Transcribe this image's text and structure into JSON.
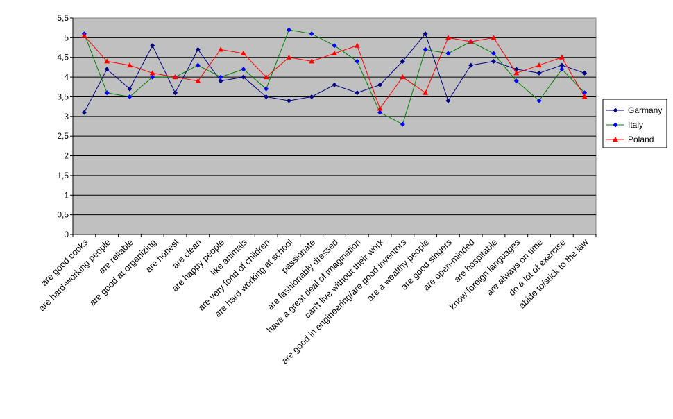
{
  "chart_data": {
    "type": "line",
    "ylim": [
      0,
      5.5
    ],
    "yticks": [
      "0",
      "0,5",
      "1",
      "1,5",
      "2",
      "2,5",
      "3",
      "3,5",
      "4",
      "4,5",
      "5",
      "5,5"
    ],
    "grid": true,
    "legend_position": "right",
    "categories": [
      "are good cooks",
      "are hard-working people",
      "are reliable",
      "are good at organizing",
      "are honest",
      "are clean",
      "are happy people",
      "like animals",
      "are very fond of children",
      "are hard working at school",
      "passionate",
      "are fashionably dressed",
      "have a great deal of imagination",
      "can't live without their work",
      "are good in engineering/are good inventors",
      "are a wealthy people",
      "are good singers",
      "are open-minded",
      "are hospitable",
      "know foreign languages",
      "are always on time",
      "do a lot of exercise",
      "abide to/stick to the law"
    ],
    "series": [
      {
        "name": "Garmany",
        "color": "#000080",
        "marker": "diamond",
        "values": [
          3.1,
          4.2,
          3.7,
          4.8,
          3.6,
          4.7,
          3.9,
          4.0,
          3.5,
          3.4,
          3.5,
          3.8,
          3.6,
          3.8,
          4.4,
          5.1,
          3.4,
          4.3,
          4.4,
          4.2,
          4.1,
          4.3,
          4.1
        ]
      },
      {
        "name": "Italy",
        "color": "#008000",
        "marker": "diamond",
        "marker_color": "#0000ff",
        "values": [
          5.1,
          3.6,
          3.5,
          4.0,
          4.0,
          4.3,
          4.0,
          4.2,
          3.7,
          5.2,
          5.1,
          4.8,
          4.4,
          3.1,
          2.8,
          4.7,
          4.6,
          4.9,
          4.6,
          3.9,
          3.4,
          4.2,
          3.6
        ]
      },
      {
        "name": "Poland",
        "color": "#ff0000",
        "marker": "triangle",
        "values": [
          5.05,
          4.4,
          4.3,
          4.1,
          4.0,
          3.9,
          4.7,
          4.6,
          4.0,
          4.5,
          4.4,
          4.6,
          4.8,
          3.2,
          4.0,
          3.6,
          5.0,
          4.9,
          5.0,
          4.1,
          4.3,
          4.5,
          3.5
        ]
      }
    ]
  }
}
